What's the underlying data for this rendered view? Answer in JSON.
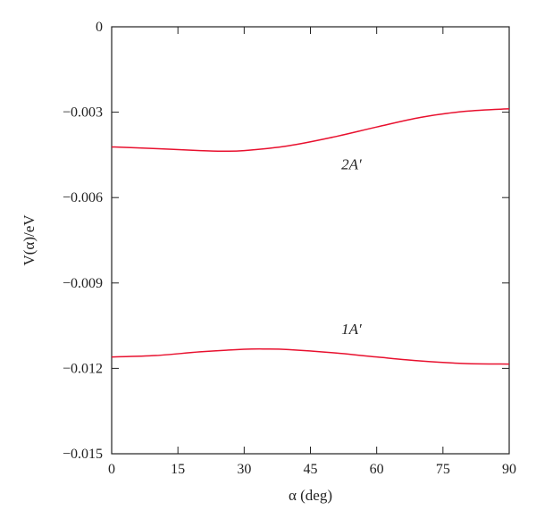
{
  "chart_data": {
    "type": "line",
    "xlabel": "α (deg)",
    "ylabel": "V(α)/eV",
    "xlim": [
      0,
      90
    ],
    "ylim": [
      -0.015,
      0
    ],
    "x_ticks": [
      0,
      15,
      30,
      45,
      60,
      75,
      90
    ],
    "y_ticks": [
      0,
      -0.003,
      -0.006,
      -0.009,
      -0.012,
      -0.015
    ],
    "x_tick_labels": [
      "0",
      "15",
      "30",
      "45",
      "60",
      "75",
      "90"
    ],
    "y_tick_labels": [
      "0",
      "−0.003",
      "−0.006",
      "−0.009",
      "−0.012",
      "−0.015"
    ],
    "grid": false,
    "series": [
      {
        "name": "2A′",
        "color": "#e8102e",
        "x": [
          0,
          10,
          20,
          25,
          30,
          40,
          50,
          60,
          70,
          80,
          90
        ],
        "y": [
          -0.00422,
          -0.00428,
          -0.00435,
          -0.00437,
          -0.00435,
          -0.00418,
          -0.00388,
          -0.00352,
          -0.00318,
          -0.00297,
          -0.00288
        ]
      },
      {
        "name": "1A′",
        "color": "#e8102e",
        "x": [
          0,
          10,
          20,
          30,
          35,
          40,
          50,
          60,
          70,
          80,
          90
        ],
        "y": [
          -0.0116,
          -0.01155,
          -0.01142,
          -0.01133,
          -0.01132,
          -0.01134,
          -0.01145,
          -0.0116,
          -0.01174,
          -0.01183,
          -0.01185
        ]
      }
    ],
    "annotations": [
      {
        "text": "2A′",
        "x": 52,
        "y": -0.005
      },
      {
        "text": "1A′",
        "x": 52,
        "y": -0.0108
      }
    ]
  }
}
